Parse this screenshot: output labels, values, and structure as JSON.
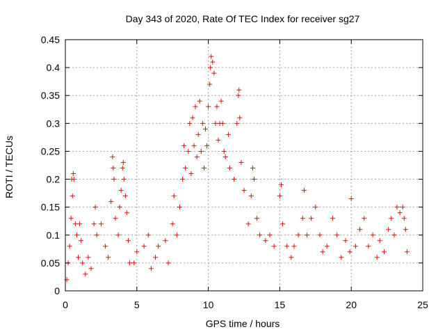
{
  "chart_data": {
    "type": "scatter",
    "title": "Day 343 of 2020, Rate Of TEC Index for receiver sg27",
    "xlabel": "GPS time / hours",
    "ylabel": "ROTI / TECUs",
    "xlim": [
      0,
      25
    ],
    "ylim": [
      0,
      0.45
    ],
    "x_ticks": [
      0,
      5,
      10,
      15,
      20,
      25
    ],
    "y_ticks": [
      0,
      0.05,
      0.1,
      0.15,
      0.2,
      0.25,
      0.3,
      0.35,
      0.4,
      0.45
    ],
    "x_tick_labels": [
      "0",
      "5",
      "10",
      "15",
      "20",
      "25"
    ],
    "y_tick_labels": [
      "0",
      "0.05",
      "0.1",
      "0.15",
      "0.2",
      "0.25",
      "0.3",
      "0.35",
      "0.4",
      "0.45"
    ],
    "grid": true,
    "marker": "+",
    "marker_color": "#ff0000",
    "series": [
      {
        "name": "ROTI",
        "points": [
          [
            0.1,
            0.02
          ],
          [
            0.2,
            0.05
          ],
          [
            0.3,
            0.08
          ],
          [
            0.4,
            0.13
          ],
          [
            0.45,
            0.2
          ],
          [
            0.5,
            0.17
          ],
          [
            0.55,
            0.21
          ],
          [
            0.6,
            0.2
          ],
          [
            0.7,
            0.12
          ],
          [
            0.8,
            0.1
          ],
          [
            0.9,
            0.06
          ],
          [
            1.0,
            0.12
          ],
          [
            1.1,
            0.09
          ],
          [
            1.2,
            0.05
          ],
          [
            1.4,
            0.03
          ],
          [
            1.6,
            0.06
          ],
          [
            1.8,
            0.04
          ],
          [
            2.0,
            0.12
          ],
          [
            2.1,
            0.15
          ],
          [
            2.2,
            0.1
          ],
          [
            2.5,
            0.12
          ],
          [
            2.8,
            0.08
          ],
          [
            3.0,
            0.06
          ],
          [
            3.2,
            0.16
          ],
          [
            3.3,
            0.24
          ],
          [
            3.35,
            0.22
          ],
          [
            3.4,
            0.2
          ],
          [
            3.5,
            0.13
          ],
          [
            3.7,
            0.1
          ],
          [
            3.8,
            0.15
          ],
          [
            3.9,
            0.18
          ],
          [
            4.0,
            0.22
          ],
          [
            4.05,
            0.23
          ],
          [
            4.1,
            0.2
          ],
          [
            4.2,
            0.17
          ],
          [
            4.3,
            0.14
          ],
          [
            4.4,
            0.09
          ],
          [
            4.5,
            0.05
          ],
          [
            4.8,
            0.05
          ],
          [
            5.0,
            0.07
          ],
          [
            5.5,
            0.08
          ],
          [
            5.8,
            0.1
          ],
          [
            6.0,
            0.04
          ],
          [
            6.3,
            0.06
          ],
          [
            6.5,
            0.08
          ],
          [
            7.0,
            0.09
          ],
          [
            7.2,
            0.05
          ],
          [
            7.5,
            0.12
          ],
          [
            7.6,
            0.17
          ],
          [
            7.8,
            0.1
          ],
          [
            8.0,
            0.15
          ],
          [
            8.2,
            0.2
          ],
          [
            8.3,
            0.26
          ],
          [
            8.4,
            0.22
          ],
          [
            8.6,
            0.25
          ],
          [
            8.7,
            0.3
          ],
          [
            8.8,
            0.21
          ],
          [
            8.9,
            0.31
          ],
          [
            9.0,
            0.26
          ],
          [
            9.1,
            0.33
          ],
          [
            9.2,
            0.24
          ],
          [
            9.3,
            0.28
          ],
          [
            9.4,
            0.34
          ],
          [
            9.5,
            0.25
          ],
          [
            9.6,
            0.3
          ],
          [
            9.7,
            0.22
          ],
          [
            9.8,
            0.29
          ],
          [
            9.9,
            0.26
          ],
          [
            10.0,
            0.33
          ],
          [
            10.1,
            0.37
          ],
          [
            10.15,
            0.4
          ],
          [
            10.2,
            0.42
          ],
          [
            10.3,
            0.41
          ],
          [
            10.4,
            0.39
          ],
          [
            10.5,
            0.3
          ],
          [
            10.6,
            0.33
          ],
          [
            10.7,
            0.27
          ],
          [
            10.8,
            0.3
          ],
          [
            10.9,
            0.34
          ],
          [
            11.0,
            0.3
          ],
          [
            11.1,
            0.25
          ],
          [
            11.2,
            0.24
          ],
          [
            11.4,
            0.28
          ],
          [
            11.5,
            0.22
          ],
          [
            11.8,
            0.2
          ],
          [
            12.0,
            0.3
          ],
          [
            12.1,
            0.35
          ],
          [
            12.15,
            0.36
          ],
          [
            12.2,
            0.31
          ],
          [
            12.3,
            0.23
          ],
          [
            12.5,
            0.18
          ],
          [
            12.8,
            0.12
          ],
          [
            13.0,
            0.17
          ],
          [
            13.1,
            0.22
          ],
          [
            13.2,
            0.2
          ],
          [
            13.4,
            0.13
          ],
          [
            13.6,
            0.1
          ],
          [
            14.0,
            0.09
          ],
          [
            14.3,
            0.1
          ],
          [
            14.6,
            0.08
          ],
          [
            15.0,
            0.17
          ],
          [
            15.1,
            0.19
          ],
          [
            15.2,
            0.12
          ],
          [
            15.5,
            0.08
          ],
          [
            15.8,
            0.06
          ],
          [
            16.0,
            0.08
          ],
          [
            16.3,
            0.1
          ],
          [
            16.6,
            0.13
          ],
          [
            16.7,
            0.18
          ],
          [
            16.9,
            0.1
          ],
          [
            17.2,
            0.13
          ],
          [
            17.5,
            0.15
          ],
          [
            17.8,
            0.1
          ],
          [
            18.0,
            0.07
          ],
          [
            18.3,
            0.08
          ],
          [
            18.7,
            0.13
          ],
          [
            19.0,
            0.1
          ],
          [
            19.3,
            0.06
          ],
          [
            19.6,
            0.09
          ],
          [
            19.9,
            0.07
          ],
          [
            20.0,
            0.165
          ],
          [
            20.3,
            0.08
          ],
          [
            20.6,
            0.11
          ],
          [
            20.9,
            0.13
          ],
          [
            21.2,
            0.08
          ],
          [
            21.5,
            0.1
          ],
          [
            21.8,
            0.06
          ],
          [
            22.0,
            0.09
          ],
          [
            22.3,
            0.07
          ],
          [
            22.6,
            0.11
          ],
          [
            22.8,
            0.13
          ],
          [
            23.0,
            0.1
          ],
          [
            23.2,
            0.15
          ],
          [
            23.4,
            0.14
          ],
          [
            23.6,
            0.15
          ],
          [
            23.7,
            0.13
          ],
          [
            23.8,
            0.11
          ],
          [
            23.9,
            0.07
          ]
        ]
      }
    ]
  }
}
